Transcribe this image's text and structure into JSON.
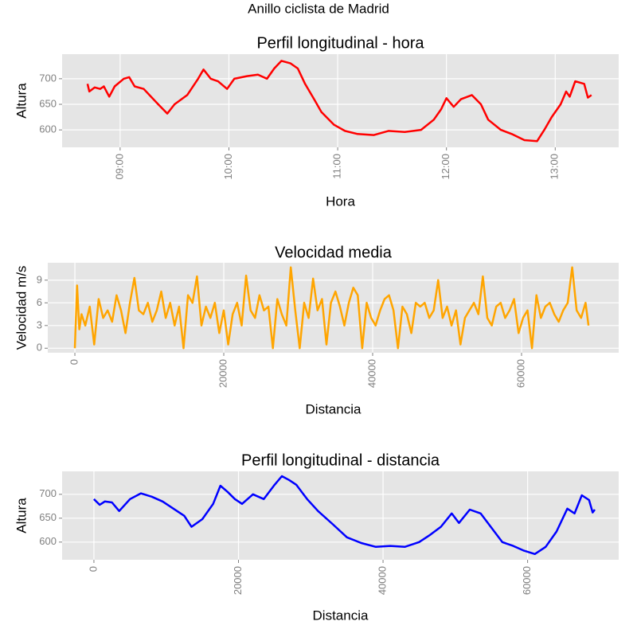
{
  "title": "Anillo ciclista de Madrid",
  "chart_data": [
    {
      "type": "line",
      "title": "Perfil longitudinal - hora",
      "xlabel": "Hora",
      "ylabel": "Altura",
      "x": [
        "08:42",
        "08:43",
        "08:46",
        "08:49",
        "08:51",
        "08:54",
        "08:57",
        "09:02",
        "09:05",
        "09:08",
        "09:13",
        "09:17",
        "09:21",
        "09:26",
        "09:30",
        "09:37",
        "09:43",
        "09:46",
        "09:50",
        "09:54",
        "09:59",
        "10:03",
        "10:10",
        "10:16",
        "10:21",
        "10:25",
        "10:29",
        "10:34",
        "10:38",
        "10:42",
        "10:47",
        "10:51",
        "10:58",
        "11:04",
        "11:11",
        "11:20",
        "11:28",
        "11:37",
        "11:46",
        "11:53",
        "11:57",
        "12:00",
        "12:04",
        "12:08",
        "12:14",
        "12:19",
        "12:23",
        "12:30",
        "12:36",
        "12:43",
        "12:50",
        "12:54",
        "12:58",
        "13:03",
        "13:06",
        "13:08",
        "13:11",
        "13:16",
        "13:18",
        "13:20"
      ],
      "series": [
        {
          "name": "Altura",
          "color": "#ff0000",
          "values": [
            690,
            675,
            683,
            680,
            685,
            665,
            685,
            700,
            703,
            685,
            680,
            665,
            650,
            632,
            650,
            668,
            700,
            718,
            700,
            695,
            680,
            700,
            705,
            708,
            700,
            720,
            735,
            730,
            720,
            690,
            660,
            635,
            610,
            598,
            592,
            590,
            598,
            596,
            600,
            620,
            640,
            662,
            645,
            660,
            668,
            650,
            620,
            600,
            592,
            580,
            578,
            600,
            625,
            650,
            675,
            665,
            695,
            690,
            663,
            668
          ]
        }
      ],
      "xlim": [
        "08:28",
        "13:35"
      ],
      "xticks": [
        "09:00",
        "10:00",
        "11:00",
        "12:00",
        "13:00"
      ],
      "ylim": [
        566,
        748
      ],
      "yticks": [
        600,
        650,
        700
      ],
      "grid": true
    },
    {
      "type": "line",
      "title": "Velocidad media",
      "xlabel": "Distancia",
      "ylabel": "Velocidad m/s",
      "x": [
        0,
        300,
        600,
        900,
        1400,
        2000,
        2600,
        3200,
        3800,
        4400,
        5000,
        5600,
        6200,
        6800,
        7400,
        8000,
        8600,
        9200,
        9800,
        10400,
        11000,
        11600,
        12200,
        12800,
        13400,
        14000,
        14600,
        15200,
        15800,
        16400,
        17000,
        17600,
        18200,
        18800,
        19400,
        20000,
        20600,
        21200,
        21800,
        22400,
        23000,
        23600,
        24200,
        24800,
        25400,
        26000,
        26600,
        27200,
        27800,
        28400,
        29000,
        29600,
        30200,
        30800,
        31400,
        32000,
        32600,
        33200,
        33800,
        34400,
        35000,
        35600,
        36200,
        36800,
        37400,
        38000,
        38600,
        39200,
        39800,
        40400,
        41000,
        41600,
        42200,
        42800,
        43400,
        44000,
        44600,
        45200,
        45800,
        46400,
        47000,
        47600,
        48200,
        48800,
        49400,
        50000,
        50600,
        51200,
        51800,
        52400,
        53000,
        53600,
        54200,
        54800,
        55400,
        56000,
        56600,
        57200,
        57800,
        58400,
        59000,
        59600,
        60200,
        60800,
        61400,
        62000,
        62600,
        63200,
        63800,
        64400,
        65000,
        65600,
        66200,
        66800,
        67400,
        68000,
        68600,
        69000
      ],
      "series": [
        {
          "name": "Velocidad",
          "color": "#ffa500",
          "values": [
            0,
            8.3,
            2.5,
            4.5,
            3,
            5.5,
            0.5,
            6.5,
            4,
            5,
            3.5,
            7,
            5,
            2,
            6,
            9.3,
            5,
            4.5,
            6,
            3.5,
            5,
            7.5,
            4,
            6,
            3,
            5.5,
            0,
            7,
            6,
            9.5,
            3,
            5.5,
            4,
            6,
            2,
            5,
            0.5,
            4.5,
            6,
            3,
            9.6,
            5,
            4,
            7,
            5,
            5.5,
            0,
            6.5,
            4.5,
            3,
            10.7,
            5,
            0,
            6,
            4,
            9.2,
            5,
            6.5,
            0.5,
            6,
            7.5,
            5.5,
            3,
            6,
            8,
            7,
            0,
            6,
            4,
            3,
            5,
            6.5,
            7,
            5,
            0,
            5.5,
            4.5,
            2,
            6,
            5.5,
            6,
            4,
            5,
            9,
            4,
            5.5,
            3,
            5,
            0.5,
            4,
            5,
            6,
            4.5,
            9.5,
            4,
            3,
            5.5,
            6,
            4,
            5,
            6.5,
            2,
            4,
            5,
            0,
            7,
            4,
            5.5,
            6,
            4.5,
            3.5,
            5,
            6,
            10.7,
            5,
            4,
            6,
            3
          ]
        }
      ],
      "xlim": [
        -3640,
        73050
      ],
      "xticks": [
        0,
        20000,
        40000,
        60000
      ],
      "ylim": [
        -0.6,
        11.3
      ],
      "yticks": [
        0,
        3,
        6,
        9
      ],
      "grid": true
    },
    {
      "type": "line",
      "title": "Perfil longitudinal - distancia",
      "xlabel": "Distancia",
      "ylabel": "Altura",
      "x": [
        0,
        800,
        1500,
        2500,
        3500,
        5000,
        6500,
        8000,
        9500,
        11000,
        12500,
        13500,
        15000,
        16500,
        17500,
        18500,
        19500,
        20500,
        22000,
        23500,
        25000,
        26000,
        27000,
        28000,
        29500,
        31000,
        33000,
        35000,
        37000,
        39000,
        41000,
        43000,
        45000,
        46500,
        48000,
        49500,
        50500,
        52000,
        53500,
        55000,
        56500,
        58000,
        59500,
        61000,
        62500,
        64000,
        65500,
        66500,
        67500,
        68500,
        69000,
        69300
      ],
      "series": [
        {
          "name": "Altura",
          "color": "#0000ff",
          "values": [
            690,
            678,
            685,
            683,
            665,
            690,
            702,
            695,
            685,
            670,
            655,
            632,
            648,
            680,
            718,
            705,
            690,
            680,
            700,
            690,
            720,
            738,
            730,
            720,
            690,
            665,
            638,
            610,
            598,
            590,
            592,
            590,
            600,
            615,
            632,
            660,
            640,
            668,
            660,
            630,
            600,
            592,
            582,
            575,
            590,
            622,
            670,
            660,
            698,
            688,
            662,
            668
          ]
        }
      ],
      "xlim": [
        -4400,
        72600
      ],
      "xticks": [
        0,
        20000,
        40000,
        60000
      ],
      "ylim": [
        563,
        748
      ],
      "yticks": [
        600,
        650,
        700
      ],
      "grid": true
    }
  ]
}
